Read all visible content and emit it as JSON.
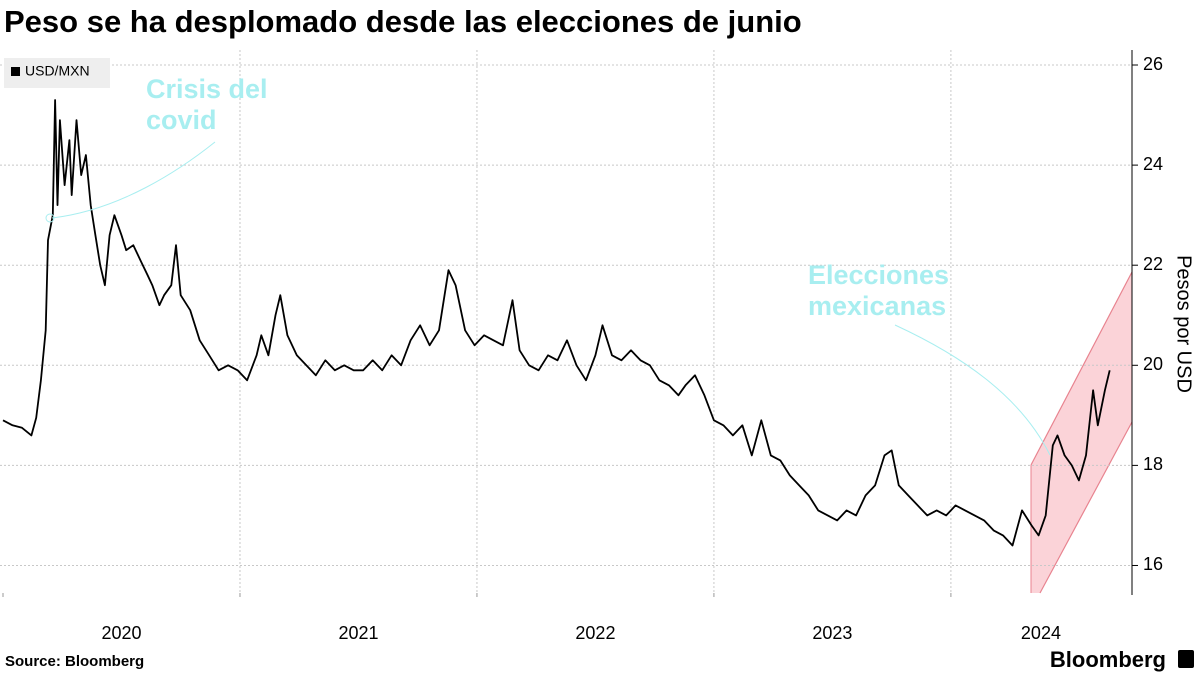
{
  "chart_data": {
    "type": "line",
    "title": "Peso se ha desplomado desde las elecciones de junio",
    "legend": "USD/MXN",
    "y_label": "Pesos por USD",
    "source": "Source: Bloomberg",
    "brand": "Bloomberg",
    "annotations": [
      "Crisis del covid",
      "Elecciones mexicanas"
    ],
    "xlim": [
      2020,
      2024.76
    ],
    "xticks": [
      2020,
      2021,
      2022,
      2023,
      2024
    ],
    "ylim": [
      15.45,
      26.3
    ],
    "yticks": [
      16,
      18,
      20,
      22,
      24,
      26
    ],
    "grid": true,
    "series": [
      {
        "name": "USD/MXN",
        "color": "#000000",
        "x": [
          2020.0,
          2020.04,
          2020.08,
          2020.12,
          2020.14,
          2020.16,
          2020.18,
          2020.19,
          2020.21,
          2020.22,
          2020.23,
          2020.24,
          2020.26,
          2020.28,
          2020.29,
          2020.31,
          2020.33,
          2020.35,
          2020.37,
          2020.39,
          2020.41,
          2020.43,
          2020.45,
          2020.47,
          2020.5,
          2020.52,
          2020.55,
          2020.58,
          2020.61,
          2020.63,
          2020.66,
          2020.68,
          2020.71,
          2020.73,
          2020.75,
          2020.79,
          2020.83,
          2020.87,
          2020.91,
          2020.95,
          2020.99,
          2021.03,
          2021.07,
          2021.09,
          2021.12,
          2021.15,
          2021.17,
          2021.2,
          2021.24,
          2021.28,
          2021.32,
          2021.36,
          2021.4,
          2021.44,
          2021.48,
          2021.52,
          2021.56,
          2021.6,
          2021.64,
          2021.68,
          2021.72,
          2021.76,
          2021.8,
          2021.84,
          2021.88,
          2021.91,
          2021.95,
          2021.99,
          2022.03,
          2022.07,
          2022.11,
          2022.15,
          2022.18,
          2022.22,
          2022.26,
          2022.3,
          2022.34,
          2022.38,
          2022.42,
          2022.46,
          2022.5,
          2022.53,
          2022.57,
          2022.61,
          2022.65,
          2022.69,
          2022.73,
          2022.77,
          2022.81,
          2022.85,
          2022.88,
          2022.92,
          2022.96,
          2023.0,
          2023.04,
          2023.08,
          2023.12,
          2023.16,
          2023.2,
          2023.24,
          2023.28,
          2023.32,
          2023.36,
          2023.4,
          2023.44,
          2023.48,
          2023.52,
          2023.56,
          2023.6,
          2023.64,
          2023.68,
          2023.72,
          2023.75,
          2023.78,
          2023.82,
          2023.86,
          2023.9,
          2023.94,
          2023.98,
          2024.02,
          2024.06,
          2024.1,
          2024.14,
          2024.18,
          2024.22,
          2024.26,
          2024.3,
          2024.34,
          2024.37,
          2024.4,
          2024.43,
          2024.45,
          2024.48,
          2024.51,
          2024.54,
          2024.57,
          2024.6,
          2024.62,
          2024.65,
          2024.67
        ],
        "values": [
          18.9,
          18.8,
          18.75,
          18.6,
          18.95,
          19.7,
          20.7,
          22.5,
          23.0,
          25.3,
          23.2,
          24.9,
          23.6,
          24.5,
          23.4,
          24.9,
          23.8,
          24.2,
          23.2,
          22.6,
          22.0,
          21.6,
          22.6,
          23.0,
          22.6,
          22.3,
          22.4,
          22.1,
          21.8,
          21.6,
          21.2,
          21.4,
          21.6,
          22.4,
          21.4,
          21.1,
          20.5,
          20.2,
          19.9,
          20.0,
          19.9,
          19.7,
          20.2,
          20.6,
          20.2,
          21.0,
          21.4,
          20.6,
          20.2,
          20.0,
          19.8,
          20.1,
          19.9,
          20.0,
          19.9,
          19.9,
          20.1,
          19.9,
          20.2,
          20.0,
          20.5,
          20.8,
          20.4,
          20.7,
          21.9,
          21.6,
          20.7,
          20.4,
          20.6,
          20.5,
          20.4,
          21.3,
          20.3,
          20.0,
          19.9,
          20.2,
          20.1,
          20.5,
          20.0,
          19.7,
          20.2,
          20.8,
          20.2,
          20.1,
          20.3,
          20.1,
          20.0,
          19.7,
          19.6,
          19.4,
          19.6,
          19.8,
          19.4,
          18.9,
          18.8,
          18.6,
          18.8,
          18.2,
          18.9,
          18.2,
          18.1,
          17.8,
          17.6,
          17.4,
          17.1,
          17.0,
          16.9,
          17.1,
          17.0,
          17.4,
          17.6,
          18.2,
          18.3,
          17.6,
          17.4,
          17.2,
          17.0,
          17.1,
          17.0,
          17.2,
          17.1,
          17.0,
          16.9,
          16.7,
          16.6,
          16.4,
          17.1,
          16.8,
          16.6,
          17.0,
          18.4,
          18.6,
          18.2,
          18.0,
          17.7,
          18.2,
          19.5,
          18.8,
          19.5,
          19.9
        ]
      }
    ]
  }
}
